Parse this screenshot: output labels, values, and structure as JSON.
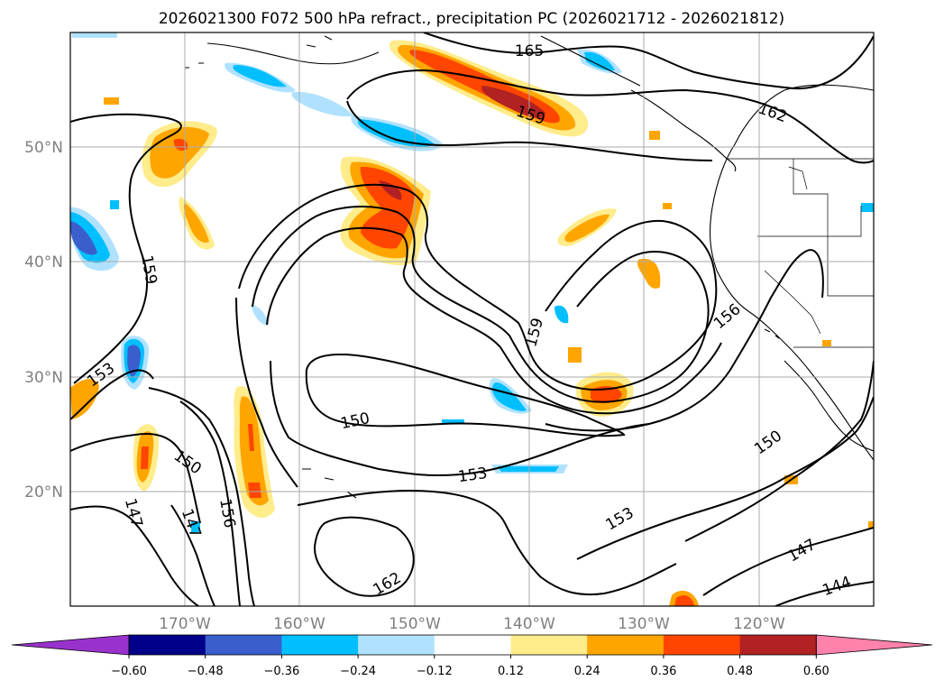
{
  "title": "2026021300 F072 500 hPa refract., precipitation PC (2026021712 - 2026021812)",
  "lat_labels": [
    "50°N",
    "40°N",
    "30°N",
    "20°N"
  ],
  "lon_labels": [
    "170°W",
    "160°W",
    "150°W",
    "140°W",
    "130°W",
    "120°W"
  ],
  "contour_labels": [
    "165",
    "162",
    "159",
    "159",
    "159",
    "156",
    "153",
    "153",
    "153",
    "150",
    "150",
    "150",
    "147",
    "147",
    "147",
    "144",
    "162",
    "156"
  ],
  "colorbar": {
    "tick_labels": [
      "−0.60",
      "−0.48",
      "−0.36",
      "−0.24",
      "−0.12",
      "0.12",
      "0.24",
      "0.36",
      "0.48",
      "0.60"
    ],
    "colors": [
      "#9932cc",
      "#00008b",
      "#3a5fcd",
      "#00bfff",
      "#b0e2ff",
      "#ffffff",
      "#ffec8b",
      "#ffa500",
      "#ff4500",
      "#b22222",
      "#ff82ab"
    ]
  },
  "colors": {
    "neg_strong": "#3a5fcd",
    "neg_mid": "#00bfff",
    "neg_weak": "#b0e2ff",
    "pos_weak": "#ffec8b",
    "pos_mid": "#ffa500",
    "pos_strong": "#ff4500",
    "pos_max": "#b22222"
  }
}
